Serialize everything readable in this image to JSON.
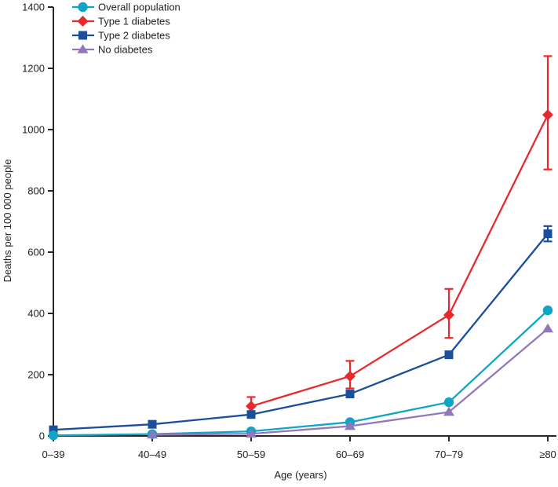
{
  "chart_data": {
    "type": "line",
    "title": "",
    "xlabel": "Age (years)",
    "ylabel": "Deaths per 100 000 people",
    "categories": [
      "0–39",
      "40–49",
      "50–59",
      "60–69",
      "70–79",
      "≥80"
    ],
    "ylim": [
      0,
      1400
    ],
    "ytick_step": 200,
    "grid": false,
    "legend_position": "top-left",
    "series": [
      {
        "name": "Overall population",
        "marker": "circle",
        "color": "#0fa6c5",
        "values": [
          2,
          6,
          15,
          45,
          110,
          410
        ],
        "error_bars": null
      },
      {
        "name": "Type 1 diabetes",
        "marker": "diamond",
        "color": "#e8292e",
        "values": [
          null,
          null,
          97,
          195,
          395,
          1048
        ],
        "error_bars": [
          null,
          null,
          [
            70,
            127
          ],
          [
            155,
            245
          ],
          [
            320,
            480
          ],
          [
            870,
            1240
          ]
        ]
      },
      {
        "name": "Type 2 diabetes",
        "marker": "square",
        "color": "#1b4e9b",
        "values": [
          20,
          38,
          70,
          137,
          265,
          660
        ],
        "error_bars": [
          null,
          null,
          null,
          null,
          null,
          [
            635,
            685
          ]
        ]
      },
      {
        "name": "No diabetes",
        "marker": "triangle",
        "color": "#9277bb",
        "values": [
          null,
          4,
          7,
          32,
          78,
          350
        ],
        "error_bars": null
      }
    ]
  },
  "colors": {
    "axis": "#2b2728",
    "text": "#231f20",
    "background": "#ffffff"
  }
}
